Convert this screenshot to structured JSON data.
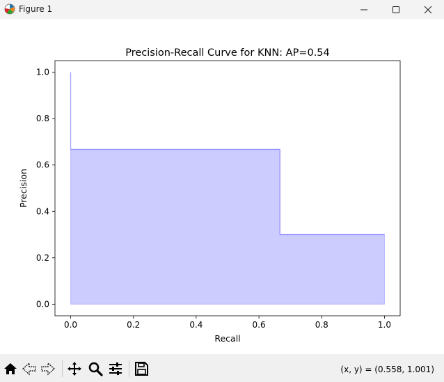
{
  "window": {
    "title": "Figure 1",
    "icons": [
      "matplotlib-icon",
      "minimize-icon",
      "maximize-icon",
      "close-icon"
    ]
  },
  "toolbar": {
    "buttons": [
      "home-icon",
      "back-icon",
      "forward-icon",
      "pan-icon",
      "zoom-icon",
      "configure-subplots-icon",
      "save-icon"
    ],
    "coords": "(x, y) = (0.558, 1.001)"
  },
  "chart_data": {
    "type": "area",
    "title": "Precision-Recall Curve for KNN: AP=0.54",
    "xlabel": "Recall",
    "ylabel": "Precision",
    "xlim": [
      -0.05,
      1.05
    ],
    "ylim": [
      -0.05,
      1.05
    ],
    "xticks": [
      0.0,
      0.2,
      0.4,
      0.6,
      0.8,
      1.0
    ],
    "xtick_labels": [
      "0.0",
      "0.2",
      "0.4",
      "0.6",
      "0.8",
      "1.0"
    ],
    "yticks": [
      0.0,
      0.2,
      0.4,
      0.6,
      0.8,
      1.0
    ],
    "ytick_labels": [
      "0.0",
      "0.2",
      "0.4",
      "0.6",
      "0.8",
      "1.0"
    ],
    "grid": false,
    "step": "post",
    "series": [
      {
        "recall": [
          0.0,
          0.0,
          0.667,
          1.0
        ],
        "precision": [
          1.0,
          0.667,
          0.3,
          0.3
        ],
        "line_color": "#0000ff",
        "fill_color": "#0000ff"
      }
    ]
  }
}
